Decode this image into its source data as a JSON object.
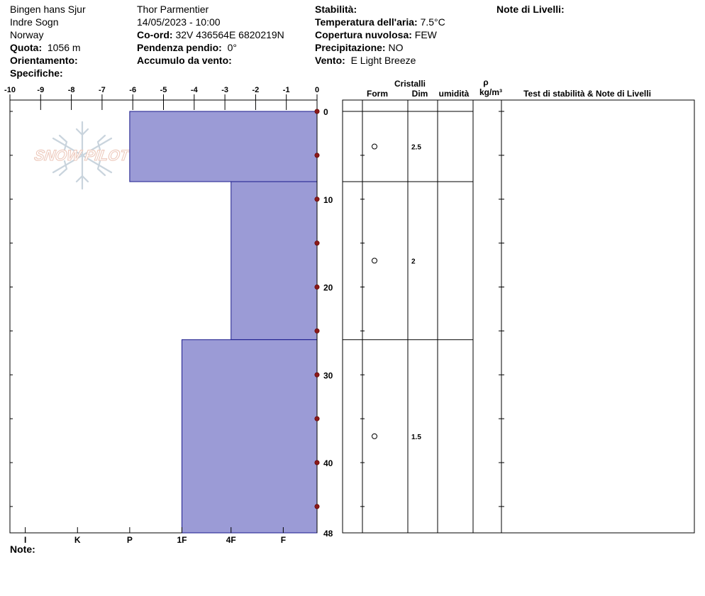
{
  "header": {
    "location": {
      "name": "Bingen hans Sjur",
      "region": "Indre Sogn",
      "country": "Norway",
      "elevation_label": "Quota:",
      "elevation_value": "1056 m",
      "aspect_label": "Orientamento:",
      "aspect_value": "",
      "specifics_label": "Specifiche:",
      "specifics_value": ""
    },
    "observer": {
      "name": "Thor Parmentier",
      "datetime": "14/05/2023 - 10:00",
      "coord_label": "Co-ord:",
      "coord_value": "32V 436564E 6820219N",
      "slope_label": "Pendenza pendio:",
      "slope_value": "0°",
      "wind_loading_label": "Accumulo da vento:",
      "wind_loading_value": ""
    },
    "conditions": {
      "stability_label": "Stabilità:",
      "stability_value": "",
      "air_temp_label": "Temperatura dell'aria:",
      "air_temp_value": "7.5°C",
      "sky_label": "Copertura nuvolosa:",
      "sky_value": "FEW",
      "precip_label": "Precipitazione:",
      "precip_value": "NO",
      "wind_label": "Vento:",
      "wind_value": "E Light Breeze"
    },
    "layer_notes_label": "Note di Livelli:"
  },
  "footer": {
    "notes_label": "Note:"
  },
  "watermark": {
    "text": "SNOW PILOT",
    "icon": "snowflake-icon"
  },
  "colors": {
    "bar_fill": "#9b9bd6",
    "bar_stroke": "#1a1a8c",
    "temp_point": "#8b1a1a"
  },
  "table": {
    "crystals_header": "Cristalli",
    "form_header": "Form",
    "size_header": "Dim",
    "moisture_header": "umidità",
    "density_symbol": "ρ",
    "density_unit": "kg/m³",
    "tests_header": "Test di stabilità & Note di Livelli",
    "form_symbol": "○"
  },
  "chart_data": {
    "type": "bar",
    "x_axis_top": {
      "label": "",
      "ticks": [
        -10,
        -9,
        -8,
        -7,
        -6,
        -5,
        -4,
        -3,
        -2,
        -1,
        0
      ],
      "range": [
        -10,
        0
      ]
    },
    "x_axis_bottom": {
      "label": "",
      "hardness_ticks": [
        "I",
        "K",
        "P",
        "1F",
        "4F",
        "F"
      ],
      "hardness_ticks_value": [
        -9.5,
        -7.8,
        -6.1,
        -4.4,
        -2.8,
        -1.1
      ]
    },
    "y_axis": {
      "label": "",
      "ticks": [
        0,
        10,
        20,
        30,
        40,
        48
      ],
      "range": [
        0,
        48
      ],
      "inverted": true
    },
    "layers": [
      {
        "top": 0,
        "bottom": 8,
        "hardness_value": -6.1,
        "form": "○",
        "size": "2.5"
      },
      {
        "top": 8,
        "bottom": 26,
        "hardness_value": -2.8,
        "form": "○",
        "size": "2"
      },
      {
        "top": 26,
        "bottom": 48,
        "hardness_value": -4.4,
        "form": "○",
        "size": "1.5"
      }
    ],
    "temperature_points": [
      {
        "depth": 0,
        "temp": 0
      },
      {
        "depth": 5,
        "temp": 0
      },
      {
        "depth": 10,
        "temp": 0
      },
      {
        "depth": 15,
        "temp": 0
      },
      {
        "depth": 20,
        "temp": 0
      },
      {
        "depth": 25,
        "temp": 0
      },
      {
        "depth": 30,
        "temp": 0
      },
      {
        "depth": 35,
        "temp": 0
      },
      {
        "depth": 40,
        "temp": 0
      },
      {
        "depth": 45,
        "temp": 0
      }
    ],
    "grid": false,
    "legend": "none"
  }
}
